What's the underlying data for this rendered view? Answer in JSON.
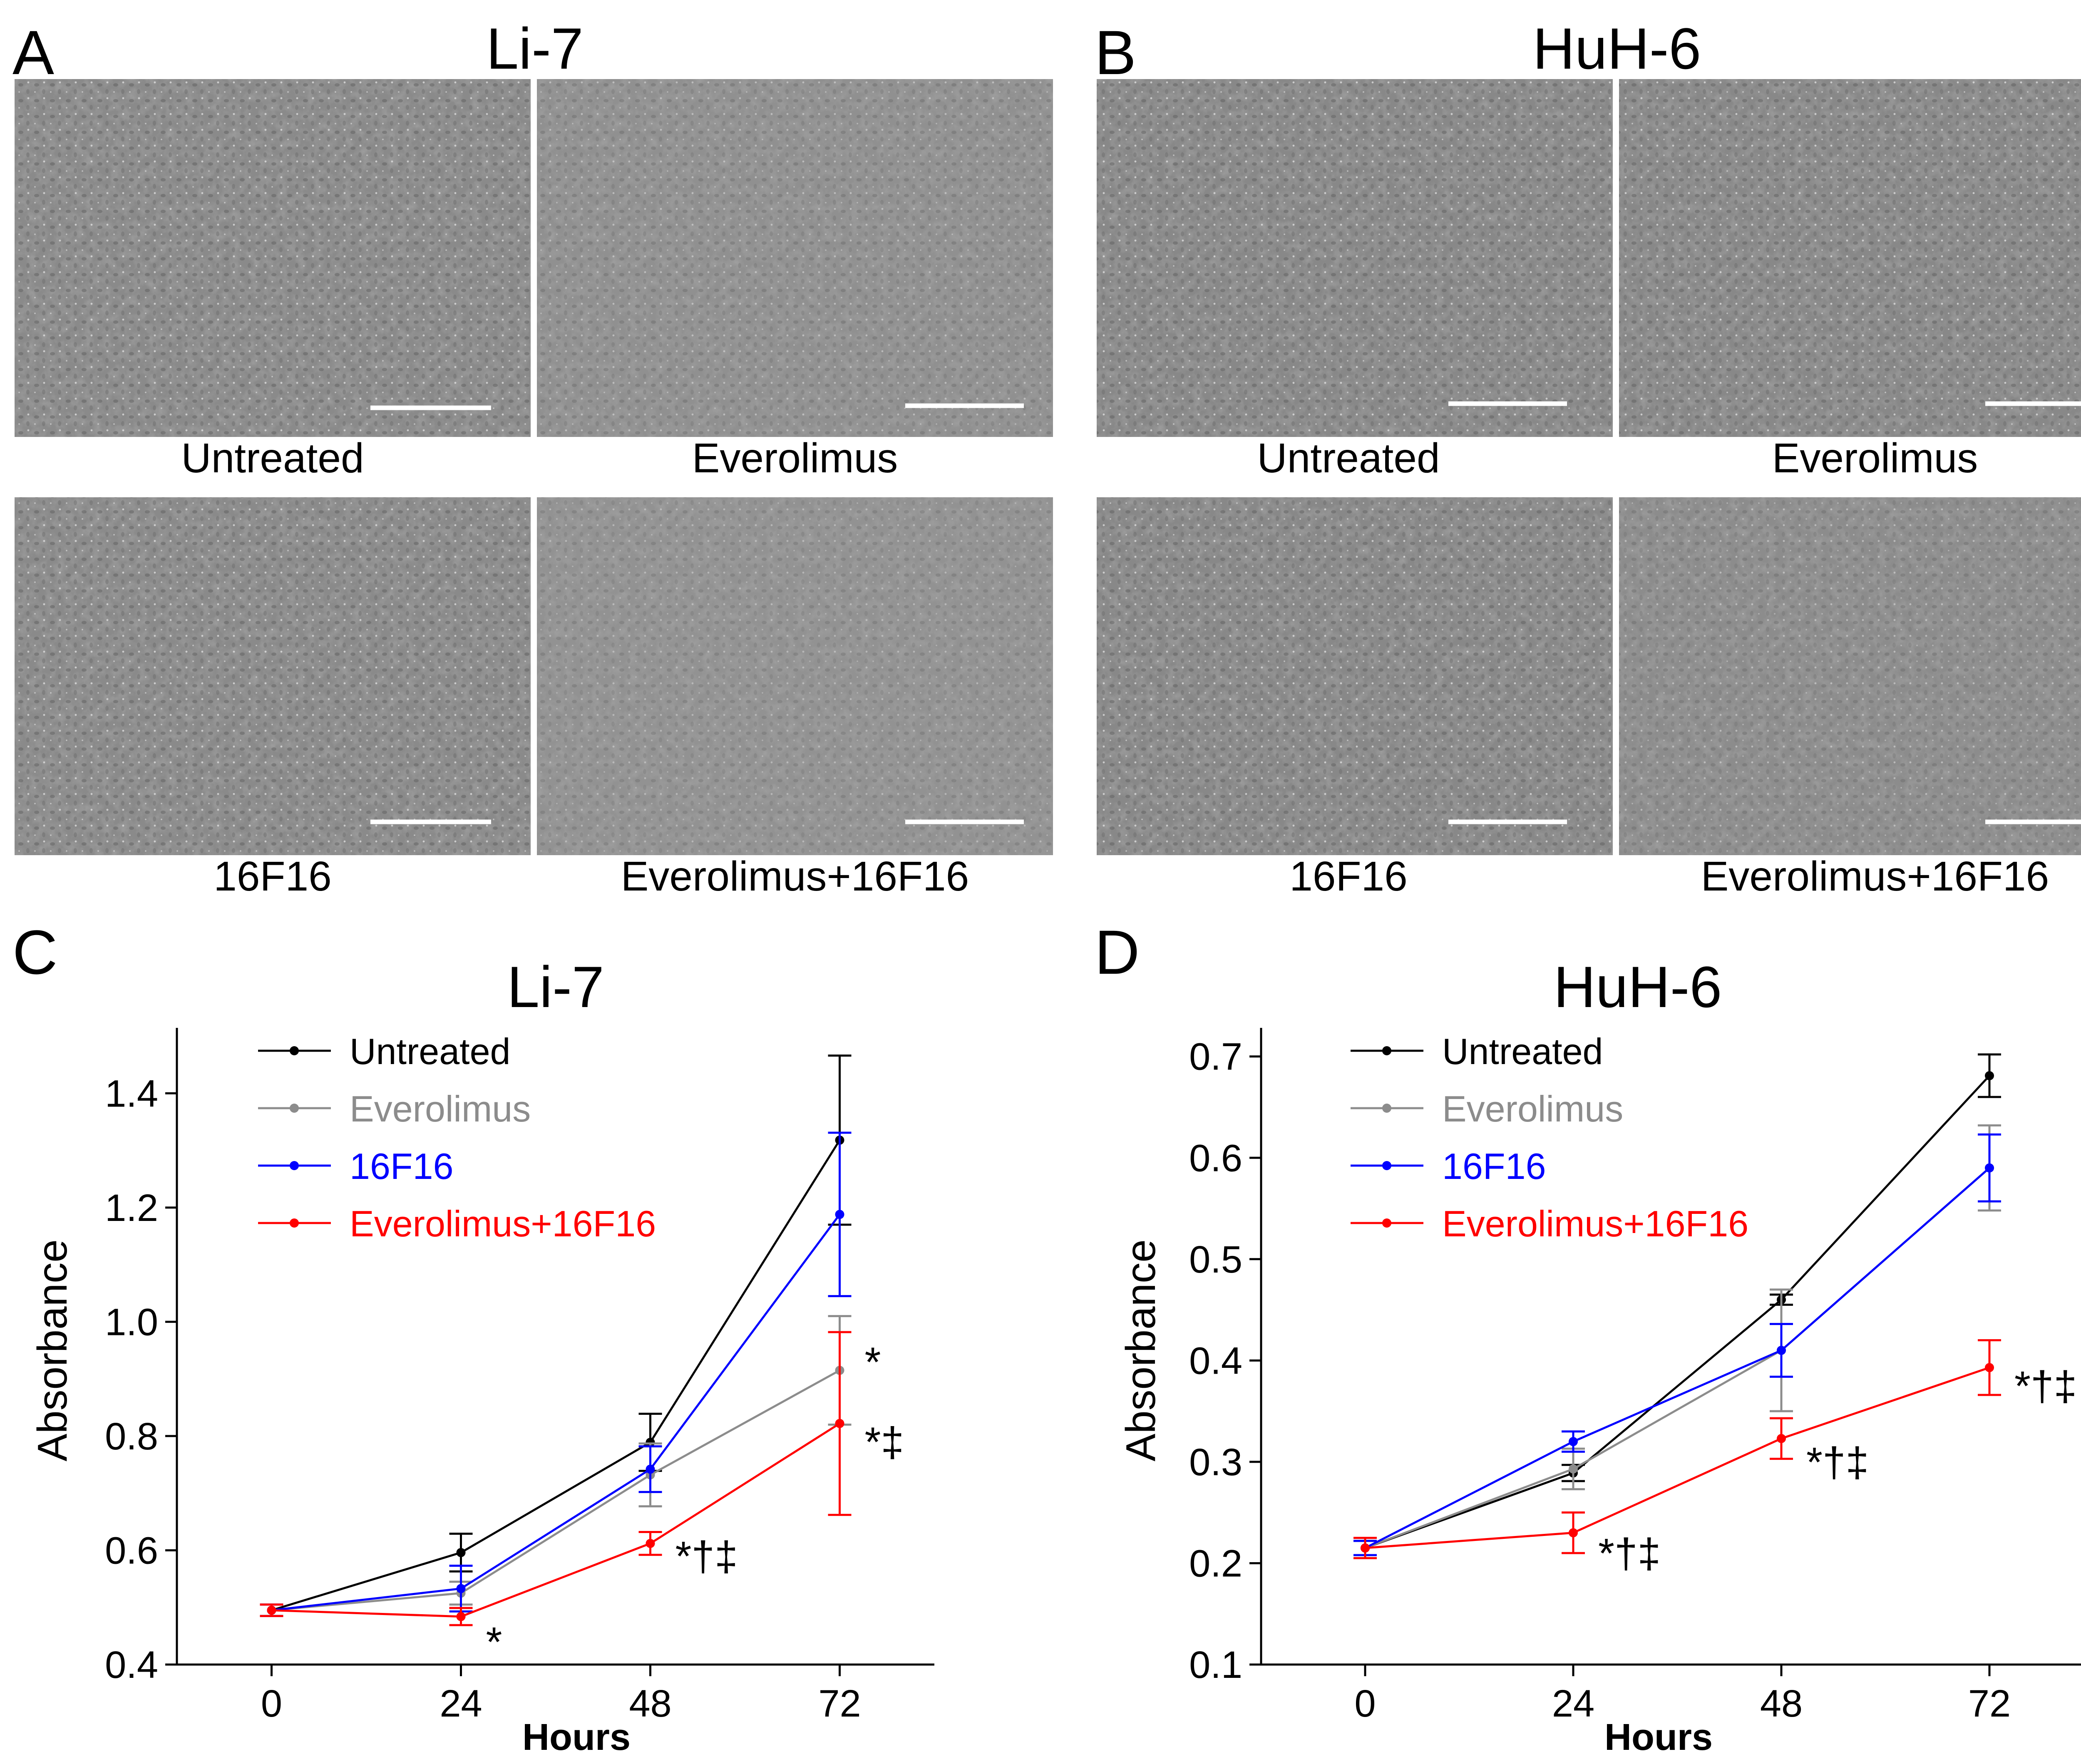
{
  "panel_letters": {
    "a": "A",
    "b": "B",
    "c": "C",
    "d": "D"
  },
  "micrographs": {
    "li7_title": "Li-7",
    "huh6_title": "HuH-6",
    "labels": {
      "untreated": "Untreated",
      "everolimus": "Everolimus",
      "f16": "16F16",
      "combo": "Everolimus+16F16"
    }
  },
  "colors": {
    "untreated": "#000000",
    "everolimus": "#8c8c8c",
    "f16": "#0000ff",
    "combo": "#ff0000"
  },
  "chart_data": [
    {
      "type": "line",
      "title": "Li-7",
      "xlabel": "Hours",
      "ylabel": "Absorbance",
      "x": [
        0,
        24,
        48,
        72
      ],
      "xlim": [
        -12,
        84
      ],
      "ylim": [
        0.4,
        1.5
      ],
      "yticks": [
        0.4,
        0.6,
        0.8,
        1.0,
        1.2,
        1.4
      ],
      "ytick_labels": [
        "0.4",
        "0.6",
        "0.8",
        "1.0",
        "1.2",
        "1.4"
      ],
      "series": [
        {
          "name": "Untreated",
          "key": "untreated",
          "values": [
            0.495,
            0.596,
            0.789,
            1.318
          ],
          "errors": [
            0.01,
            0.033,
            0.05,
            0.148
          ]
        },
        {
          "name": "Everolimus",
          "key": "everolimus",
          "values": [
            0.495,
            0.525,
            0.732,
            0.915
          ],
          "errors": [
            0.01,
            0.02,
            0.055,
            0.095
          ]
        },
        {
          "name": "16F16",
          "key": "f16",
          "values": [
            0.495,
            0.533,
            0.742,
            1.188
          ],
          "errors": [
            0.01,
            0.04,
            0.04,
            0.143
          ]
        },
        {
          "name": "Everolimus+16F16",
          "key": "combo",
          "values": [
            0.495,
            0.484,
            0.612,
            0.822
          ],
          "errors": [
            0.01,
            0.015,
            0.02,
            0.16
          ]
        }
      ],
      "annotations": [
        {
          "text": "*",
          "x": 24,
          "y": 0.44
        },
        {
          "text": "*†‡",
          "x": 48,
          "y": 0.59
        },
        {
          "text": "*",
          "x": 72,
          "y": 0.93
        },
        {
          "text": "*‡",
          "x": 72,
          "y": 0.79
        }
      ]
    },
    {
      "type": "line",
      "title": "HuH-6",
      "xlabel": "Hours",
      "ylabel": "Absorbance",
      "x": [
        0,
        24,
        48,
        72
      ],
      "xlim": [
        -12,
        84
      ],
      "ylim": [
        0.1,
        0.72
      ],
      "yticks": [
        0.1,
        0.2,
        0.3,
        0.4,
        0.5,
        0.6,
        0.7
      ],
      "ytick_labels": [
        "0.1",
        "0.2",
        "0.3",
        "0.4",
        "0.5",
        "0.6",
        "0.7"
      ],
      "series": [
        {
          "name": "Untreated",
          "key": "untreated",
          "values": [
            0.215,
            0.289,
            0.46,
            0.681
          ],
          "errors": [
            0.007,
            0.008,
            0.005,
            0.021
          ]
        },
        {
          "name": "Everolimus",
          "key": "everolimus",
          "values": [
            0.215,
            0.293,
            0.41,
            0.59
          ],
          "errors": [
            0.007,
            0.02,
            0.06,
            0.042
          ]
        },
        {
          "name": "16F16",
          "key": "f16",
          "values": [
            0.215,
            0.32,
            0.41,
            0.59
          ],
          "errors": [
            0.007,
            0.01,
            0.026,
            0.033
          ]
        },
        {
          "name": "Everolimus+16F16",
          "key": "combo",
          "values": [
            0.215,
            0.23,
            0.323,
            0.393
          ],
          "errors": [
            0.01,
            0.02,
            0.02,
            0.027
          ]
        }
      ],
      "annotations": [
        {
          "text": "*†‡",
          "x": 24,
          "y": 0.21
        },
        {
          "text": "*†‡",
          "x": 48,
          "y": 0.3
        },
        {
          "text": "*†‡",
          "x": 72,
          "y": 0.375
        }
      ]
    }
  ]
}
